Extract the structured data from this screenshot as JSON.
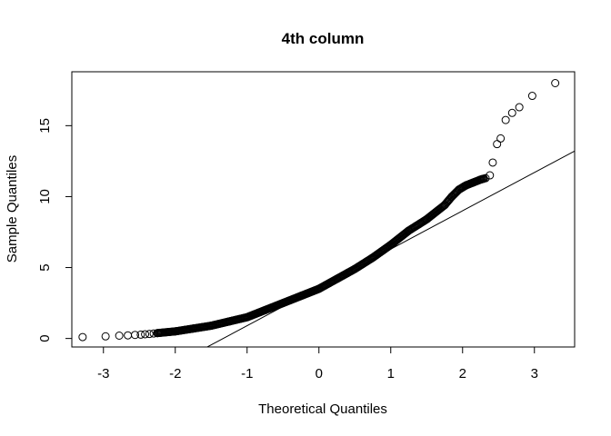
{
  "chart_data": {
    "type": "scatter",
    "title": "4th column",
    "xlabel": "Theoretical Quantiles",
    "ylabel": "Sample Quantiles",
    "xlim": [
      -3.44,
      3.56
    ],
    "ylim": [
      -0.6,
      18.8
    ],
    "xticks": [
      "-3",
      "-2",
      "-1",
      "0",
      "1",
      "2",
      "3"
    ],
    "yticks": [
      "0",
      "5",
      "10",
      "15"
    ],
    "grid": false,
    "legend": "none",
    "reference_line": {
      "intercept": 3.6,
      "slope": 2.7
    },
    "points": {
      "x": [
        -3.29,
        -2.97,
        -2.78,
        -2.66,
        -2.56,
        -2.48,
        -2.42,
        -2.36,
        -2.3,
        -2.25,
        -2.0,
        -1.75,
        -1.5,
        -1.25,
        -1.0,
        -0.75,
        -0.5,
        -0.25,
        0.0,
        0.25,
        0.5,
        0.75,
        1.0,
        1.25,
        1.5,
        1.75,
        1.85,
        1.95,
        2.05,
        2.15,
        2.25,
        2.32,
        2.38,
        2.42,
        2.48,
        2.53,
        2.6,
        2.69,
        2.79,
        2.97,
        3.29
      ],
      "y": [
        0.1,
        0.15,
        0.2,
        0.22,
        0.25,
        0.27,
        0.3,
        0.32,
        0.35,
        0.38,
        0.5,
        0.7,
        0.9,
        1.2,
        1.5,
        2.0,
        2.5,
        3.0,
        3.5,
        4.2,
        4.9,
        5.7,
        6.6,
        7.6,
        8.4,
        9.4,
        10.0,
        10.5,
        10.8,
        11.0,
        11.2,
        11.3,
        11.5,
        12.4,
        13.7,
        14.1,
        15.4,
        15.9,
        16.3,
        17.1,
        18.0
      ]
    }
  }
}
